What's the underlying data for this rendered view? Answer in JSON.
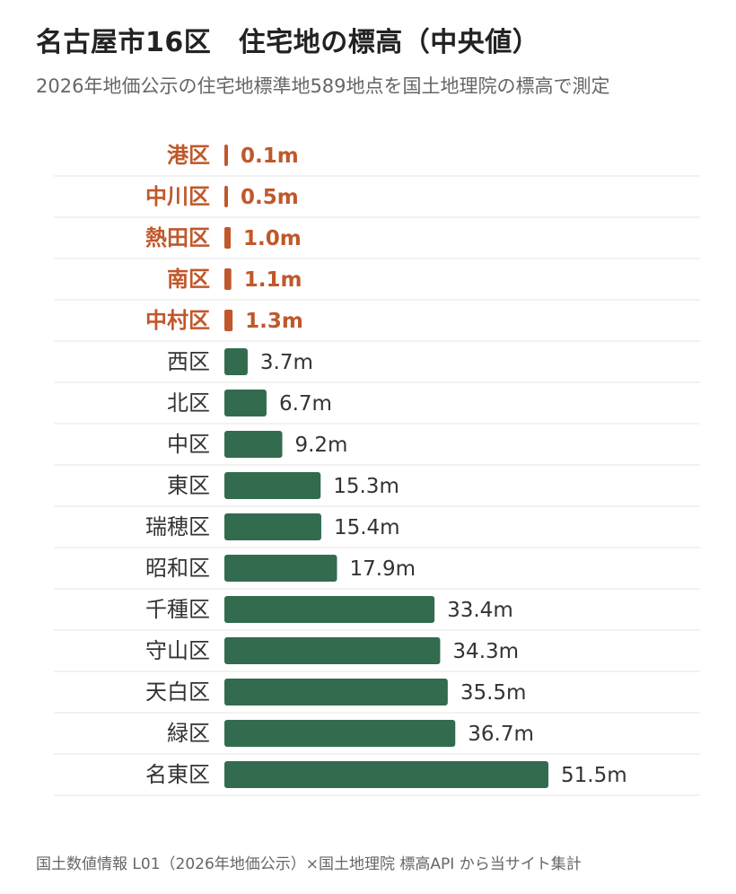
{
  "title": "名古屋市16区　住宅地の標高（中央値）",
  "subtitle": "2026年地価公示の住宅地標準地589地点を国土地理院の標高で測定",
  "source": "国土数値情報 L01（2026年地価公示）×国土地理院 標高API から当サイト集計",
  "colors": {
    "highlight": "#c0582b",
    "normal_bar": "#336b4e",
    "normal_label": "#333333",
    "grid": "#e6e6e6"
  },
  "chart_data": {
    "type": "bar",
    "orientation": "horizontal",
    "unit": "m",
    "categories": [
      "港区",
      "中川区",
      "熱田区",
      "南区",
      "中村区",
      "西区",
      "北区",
      "中区",
      "東区",
      "瑞穂区",
      "昭和区",
      "千種区",
      "守山区",
      "天白区",
      "緑区",
      "名東区"
    ],
    "values": [
      0.1,
      0.5,
      1.0,
      1.1,
      1.3,
      3.7,
      6.7,
      9.2,
      15.3,
      15.4,
      17.9,
      33.4,
      34.3,
      35.5,
      36.7,
      51.5
    ],
    "value_labels": [
      "0.1m",
      "0.5m",
      "1.0m",
      "1.1m",
      "1.3m",
      "3.7m",
      "6.7m",
      "9.2m",
      "15.3m",
      "15.4m",
      "17.9m",
      "33.4m",
      "34.3m",
      "35.5m",
      "36.7m",
      "51.5m"
    ],
    "highlighted": [
      "港区",
      "中川区",
      "熱田区",
      "南区",
      "中村区"
    ],
    "xlim": [
      0,
      51.5
    ],
    "grid": true,
    "legend": "none"
  }
}
